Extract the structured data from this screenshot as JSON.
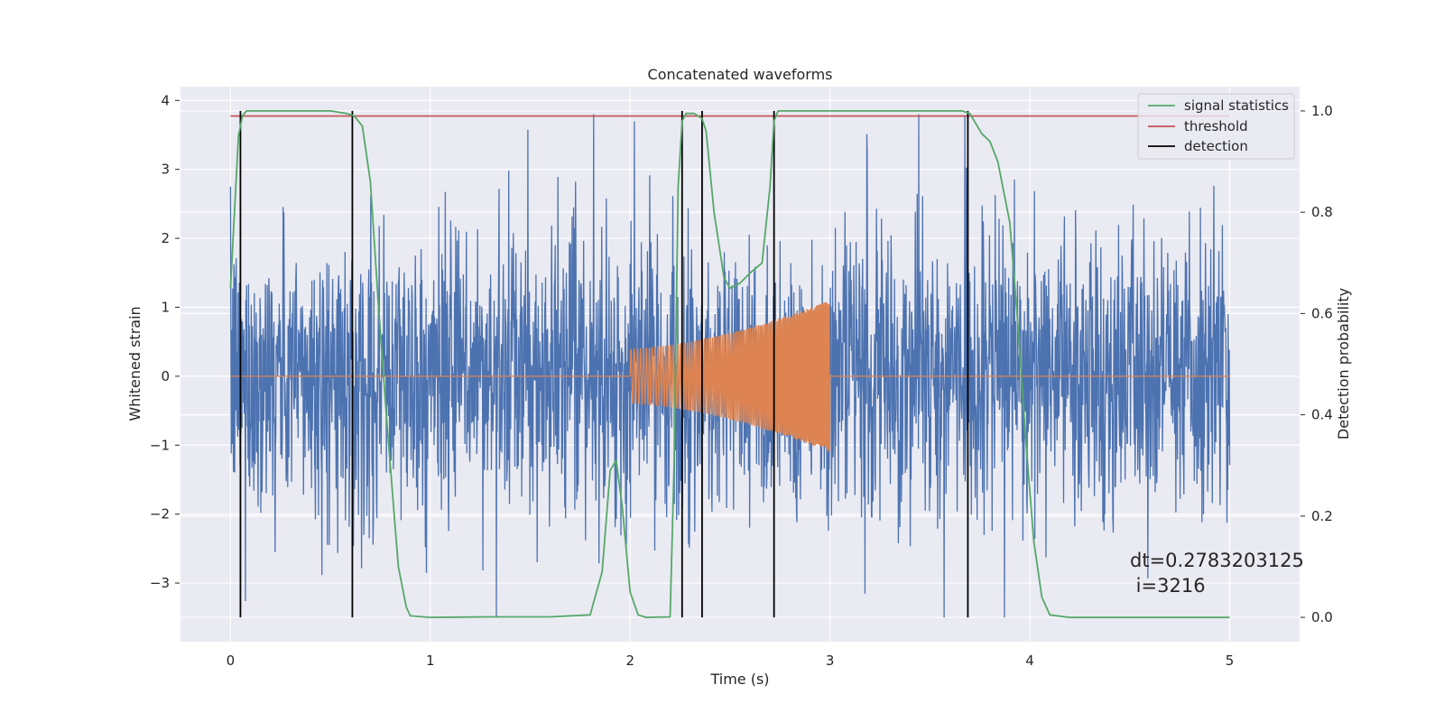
{
  "chart_data": {
    "type": "line",
    "title": "Concatenated waveforms",
    "xlabel": "Time (s)",
    "ylabel": "Whitened strain",
    "y2label": "Detection probability",
    "xlim": [
      -0.25,
      5.35
    ],
    "ylim": [
      -3.85,
      4.2
    ],
    "y2lim": [
      -0.048,
      1.048
    ],
    "xticks": [
      0,
      1,
      2,
      3,
      4,
      5
    ],
    "xtick_labels": [
      "0",
      "1",
      "2",
      "3",
      "4",
      "5"
    ],
    "yticks": [
      -3,
      -2,
      -1,
      0,
      1,
      2,
      3,
      4
    ],
    "ytick_labels": [
      "−3",
      "−2",
      "−1",
      "0",
      "1",
      "2",
      "3",
      "4"
    ],
    "y2ticks": [
      0.0,
      0.2,
      0.4,
      0.6,
      0.8,
      1.0
    ],
    "y2tick_labels": [
      "0.0",
      "0.2",
      "0.4",
      "0.6",
      "0.8",
      "1.0"
    ],
    "grid": true,
    "legend_position": "top-right",
    "series": [
      {
        "name": "",
        "axis": "left",
        "color": "#4c72b0",
        "description_kind": "whitened noisy strain",
        "x_range": [
          0,
          5
        ],
        "typical_amplitude": 1.6,
        "peak_max": 3.8,
        "peak_min": -3.5
      },
      {
        "name": "",
        "axis": "left",
        "color": "#dd8452",
        "description_kind": "injected chirp waveform",
        "x_range": [
          0,
          5
        ],
        "chirp_start": 2.0,
        "chirp_end": 3.0,
        "amp_start": 0.4,
        "amp_end": 1.1
      },
      {
        "name": "signal statistics",
        "axis": "right",
        "color": "#55a868",
        "x": [
          0.0,
          0.02,
          0.04,
          0.06,
          0.08,
          0.12,
          0.3,
          0.5,
          0.58,
          0.62,
          0.66,
          0.7,
          0.74,
          0.78,
          0.82,
          0.84,
          0.88,
          0.9,
          1.0,
          1.3,
          1.6,
          1.8,
          1.86,
          1.9,
          1.93,
          1.96,
          2.0,
          2.04,
          2.08,
          2.2,
          2.22,
          2.24,
          2.26,
          2.28,
          2.32,
          2.36,
          2.38,
          2.42,
          2.47,
          2.5,
          2.55,
          2.6,
          2.66,
          2.7,
          2.72,
          2.74,
          2.8,
          3.0,
          3.5,
          3.66,
          3.7,
          3.76,
          3.8,
          3.84,
          3.9,
          3.94,
          3.98,
          4.02,
          4.06,
          4.1,
          4.2,
          4.6,
          5.0
        ],
        "y": [
          0.65,
          0.8,
          0.95,
          0.99,
          1.0,
          1.0,
          1.0,
          1.0,
          0.995,
          0.99,
          0.97,
          0.86,
          0.62,
          0.4,
          0.2,
          0.1,
          0.02,
          0.003,
          0.0,
          0.001,
          0.001,
          0.005,
          0.09,
          0.29,
          0.31,
          0.22,
          0.05,
          0.005,
          0.0,
          0.001,
          0.3,
          0.85,
          0.98,
          0.995,
          0.995,
          0.985,
          0.96,
          0.8,
          0.67,
          0.65,
          0.66,
          0.68,
          0.7,
          0.85,
          0.98,
          1.0,
          1.0,
          1.0,
          1.0,
          1.0,
          0.995,
          0.955,
          0.94,
          0.9,
          0.78,
          0.58,
          0.35,
          0.15,
          0.04,
          0.005,
          0.0,
          0.0,
          0.0
        ]
      },
      {
        "name": "threshold",
        "axis": "right",
        "color": "#c44e52",
        "x": [
          0,
          5
        ],
        "y": [
          0.99,
          0.99
        ]
      }
    ],
    "detections": {
      "name": "detection",
      "color": "#000000",
      "x": [
        0.05,
        0.61,
        2.26,
        2.36,
        2.72,
        3.69
      ],
      "ymin": 0.0,
      "ymax": 1.0
    },
    "annotation": {
      "lines": [
        "dt=0.2783203125",
        " i=3216"
      ],
      "x": 4.5,
      "y": -2.7
    }
  },
  "colors": {
    "plot_background": "#eaeaf2",
    "grid": "#ffffff",
    "text": "#262626"
  }
}
